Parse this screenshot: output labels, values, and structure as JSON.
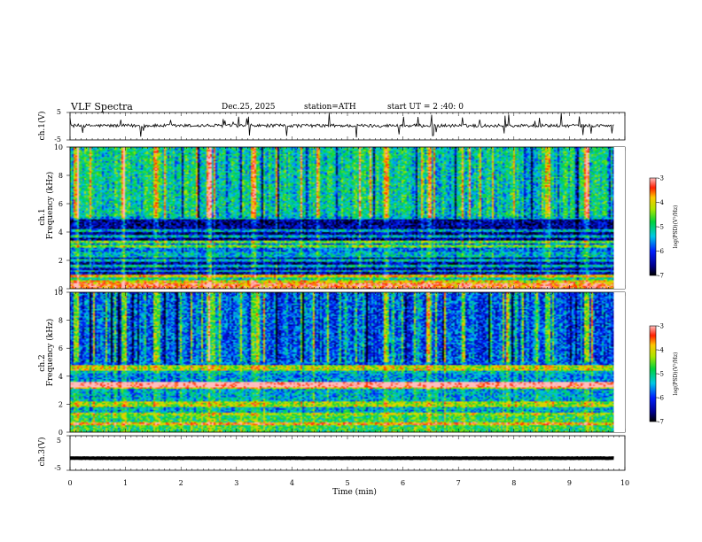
{
  "header": {
    "title": "VLF  Spectra",
    "date": "Dec.25, 2025",
    "station": "station=ATH",
    "start": "start  UT  =   2 :40: 0"
  },
  "chart_data": {
    "type": "heatmap",
    "title": "VLF  Spectra",
    "xlabel": "Time  (min)",
    "xlim": [
      0,
      10
    ],
    "x_ticks": [
      "0",
      "1",
      "2",
      "3",
      "4",
      "5",
      "6",
      "7",
      "8",
      "9",
      "10"
    ],
    "data_end_min": 9.8,
    "panels": [
      {
        "id": "ch1-waveform",
        "ylabel": "ch.1(V)",
        "ylim": [
          -5,
          5
        ],
        "y_ticks": [
          "5",
          "-5"
        ],
        "baseline_V": 0.2,
        "noise_V": 0.6
      },
      {
        "id": "ch1-spectrogram",
        "ylabel_channel": "ch.1",
        "ylabel": "Frequency  (kHz)",
        "ylim": [
          0,
          10
        ],
        "y_ticks": [
          "0",
          "2",
          "4",
          "6",
          "8",
          "10"
        ],
        "colorbar": {
          "label": "log(PSD)(V²/Hz)",
          "range": [
            -7,
            -3
          ],
          "ticks": [
            "-3",
            "-4",
            "-5",
            "-6",
            "-7"
          ]
        },
        "bands": [
          {
            "from": 0,
            "to": 0.4,
            "level": -3.4
          },
          {
            "from": 0.4,
            "to": 1.0,
            "level": -5.0
          },
          {
            "from": 1.0,
            "to": 2.6,
            "level": -6.4
          },
          {
            "from": 2.6,
            "to": 3.4,
            "level": -5.7
          },
          {
            "from": 3.4,
            "to": 5.1,
            "level": -6.5
          },
          {
            "from": 5.1,
            "to": 10,
            "level": -5.1
          }
        ],
        "lines_khz": [
          0.5,
          0.9,
          1.25,
          1.6,
          2.0,
          2.3,
          2.5,
          3.0,
          3.3,
          3.7,
          4.1,
          5.0
        ],
        "bursts_min": [
          0.1,
          0.95,
          1.55,
          2.5,
          3.3,
          5.7,
          6.45,
          8.6,
          9.3
        ]
      },
      {
        "id": "ch2-spectrogram",
        "ylabel_channel": "ch.2",
        "ylabel": "Frequency  (kHz)",
        "ylim": [
          0,
          10
        ],
        "y_ticks": [
          "0",
          "2",
          "4",
          "6",
          "8",
          "10"
        ],
        "colorbar": {
          "label": "log(PSD)(V²/Hz)",
          "range": [
            -7,
            -3
          ],
          "ticks": [
            "-3",
            "-4",
            "-5",
            "-6",
            "-7"
          ]
        },
        "bands": [
          {
            "from": 0,
            "to": 1.2,
            "level": -4.8
          },
          {
            "from": 1.2,
            "to": 3.1,
            "level": -5.4
          },
          {
            "from": 3.1,
            "to": 3.6,
            "level": -4.0
          },
          {
            "from": 3.6,
            "to": 4.2,
            "level": -5.6
          },
          {
            "from": 4.2,
            "to": 4.8,
            "level": -5.3
          },
          {
            "from": 4.8,
            "to": 10,
            "level": -5.8
          }
        ],
        "lines_khz": [
          0.6,
          1.3,
          1.9,
          2.1,
          3.3,
          3.5,
          4.5,
          4.7
        ],
        "bursts_min": [
          0.1,
          0.95,
          1.55,
          2.5,
          3.3,
          5.7,
          6.45,
          8.6,
          9.3
        ]
      },
      {
        "id": "ch3-waveform",
        "ylabel": "ch.3(V)",
        "ylim": [
          -5,
          5
        ],
        "y_ticks": [
          "5",
          "-5"
        ],
        "baseline_V": -1.5,
        "noise_V": 0.05
      }
    ]
  }
}
